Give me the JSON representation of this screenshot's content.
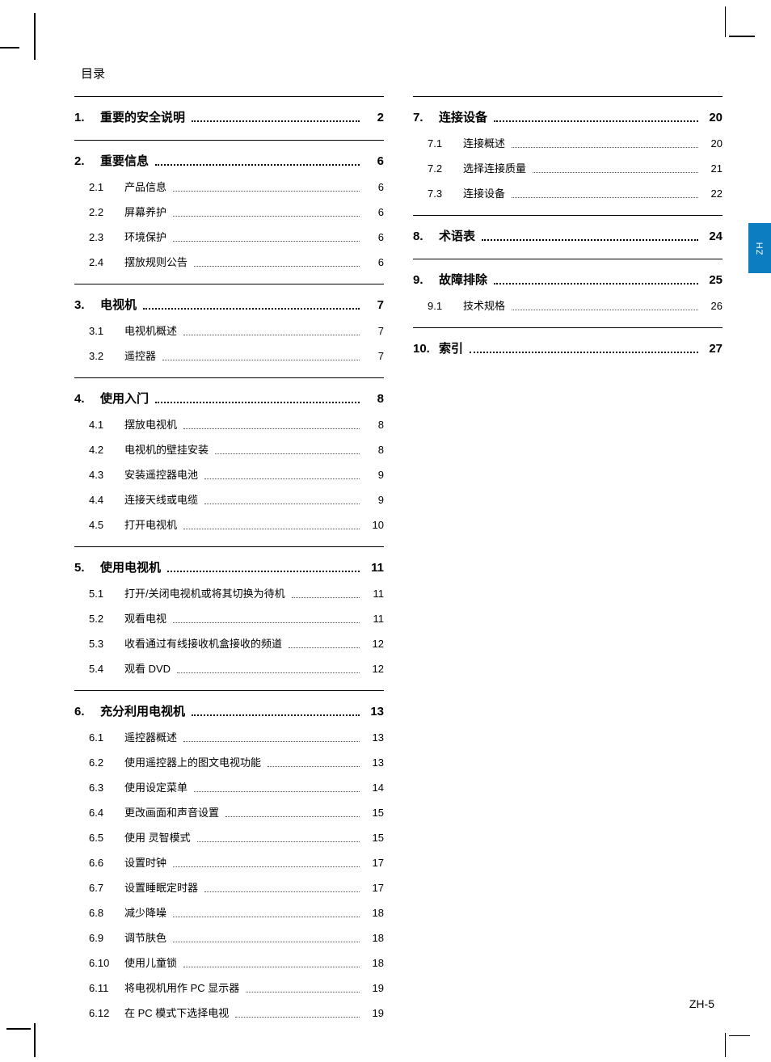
{
  "doc": {
    "toc_title": "目录",
    "lang_tab": "ZH",
    "footer": "ZH-5",
    "colors": {
      "text": "#000000",
      "background": "#ffffff",
      "tab_bg": "#0b7dc0",
      "tab_text": "#ffffff",
      "divider": "#000000"
    },
    "typography": {
      "title_fontsize": 15,
      "section_fontsize": 15,
      "sub_fontsize": 13,
      "footer_fontsize": 14
    },
    "columns": [
      {
        "sections": [
          {
            "num": "1.",
            "title": "重要的安全说明",
            "page": "2",
            "subs": []
          },
          {
            "num": "2.",
            "title": "重要信息",
            "page": "6",
            "subs": [
              {
                "num": "2.1",
                "title": "产品信息",
                "page": "6"
              },
              {
                "num": "2.2",
                "title": "屏幕养护",
                "page": "6"
              },
              {
                "num": "2.3",
                "title": "环境保护",
                "page": "6"
              },
              {
                "num": "2.4",
                "title": "摆放规则公告",
                "page": "6"
              }
            ]
          },
          {
            "num": "3.",
            "title": "电视机",
            "page": "7",
            "subs": [
              {
                "num": "3.1",
                "title": "电视机概述",
                "page": "7"
              },
              {
                "num": "3.2",
                "title": "遥控器",
                "page": "7"
              }
            ]
          },
          {
            "num": "4.",
            "title": "使用入门",
            "page": "8",
            "subs": [
              {
                "num": "4.1",
                "title": "摆放电视机",
                "page": "8"
              },
              {
                "num": "4.2",
                "title": "电视机的壁挂安装",
                "page": "8"
              },
              {
                "num": "4.3",
                "title": "安装遥控器电池",
                "page": "9"
              },
              {
                "num": "4.4",
                "title": "连接天线或电缆",
                "page": "9"
              },
              {
                "num": "4.5",
                "title": "打开电视机",
                "page": "10"
              }
            ]
          },
          {
            "num": "5.",
            "title": "使用电视机",
            "page": "11",
            "subs": [
              {
                "num": "5.1",
                "title": "打开/关闭电视机或将其切换为待机",
                "page": "11"
              },
              {
                "num": "5.2",
                "title": "观看电视",
                "page": "11"
              },
              {
                "num": "5.3",
                "title": "收看通过有线接收机盒接收的频道",
                "page": "12"
              },
              {
                "num": "5.4",
                "title": "观看 DVD",
                "page": "12"
              }
            ]
          },
          {
            "num": "6.",
            "title": "充分利用电视机",
            "page": "13",
            "subs": [
              {
                "num": "6.1",
                "title": "遥控器概述",
                "page": "13"
              },
              {
                "num": "6.2",
                "title": "使用遥控器上的图文电视功能",
                "page": "13"
              },
              {
                "num": "6.3",
                "title": "使用设定菜单",
                "page": "14"
              },
              {
                "num": "6.4",
                "title": "更改画面和声音设置",
                "page": "15"
              },
              {
                "num": "6.5",
                "title": "使用 灵智模式",
                "page": "15"
              },
              {
                "num": "6.6",
                "title": "设置时钟",
                "page": "17"
              },
              {
                "num": "6.7",
                "title": "设置睡眠定时器",
                "page": "17"
              },
              {
                "num": "6.8",
                "title": "减少降噪",
                "page": "18"
              },
              {
                "num": "6.9",
                "title": "调节肤色",
                "page": "18"
              },
              {
                "num": "6.10",
                "title": "使用儿童锁",
                "page": "18"
              },
              {
                "num": "6.11",
                "title": "将电视机用作 PC 显示器",
                "page": "19"
              },
              {
                "num": "6.12",
                "title": "在 PC 模式下选择电视",
                "page": "19"
              }
            ]
          }
        ]
      },
      {
        "sections": [
          {
            "num": "7.",
            "title": "连接设备",
            "page": "20",
            "subs": [
              {
                "num": "7.1",
                "title": "连接概述",
                "page": "20"
              },
              {
                "num": "7.2",
                "title": "选择连接质量",
                "page": "21"
              },
              {
                "num": "7.3",
                "title": "连接设备",
                "page": "22"
              }
            ]
          },
          {
            "num": "8.",
            "title": "术语表",
            "page": "24",
            "subs": []
          },
          {
            "num": "9.",
            "title": "故障排除",
            "page": "25",
            "subs": [
              {
                "num": "9.1",
                "title": "技术规格",
                "page": "26"
              }
            ]
          },
          {
            "num": "10.",
            "title": "索引",
            "page": "27",
            "subs": []
          }
        ]
      }
    ]
  }
}
